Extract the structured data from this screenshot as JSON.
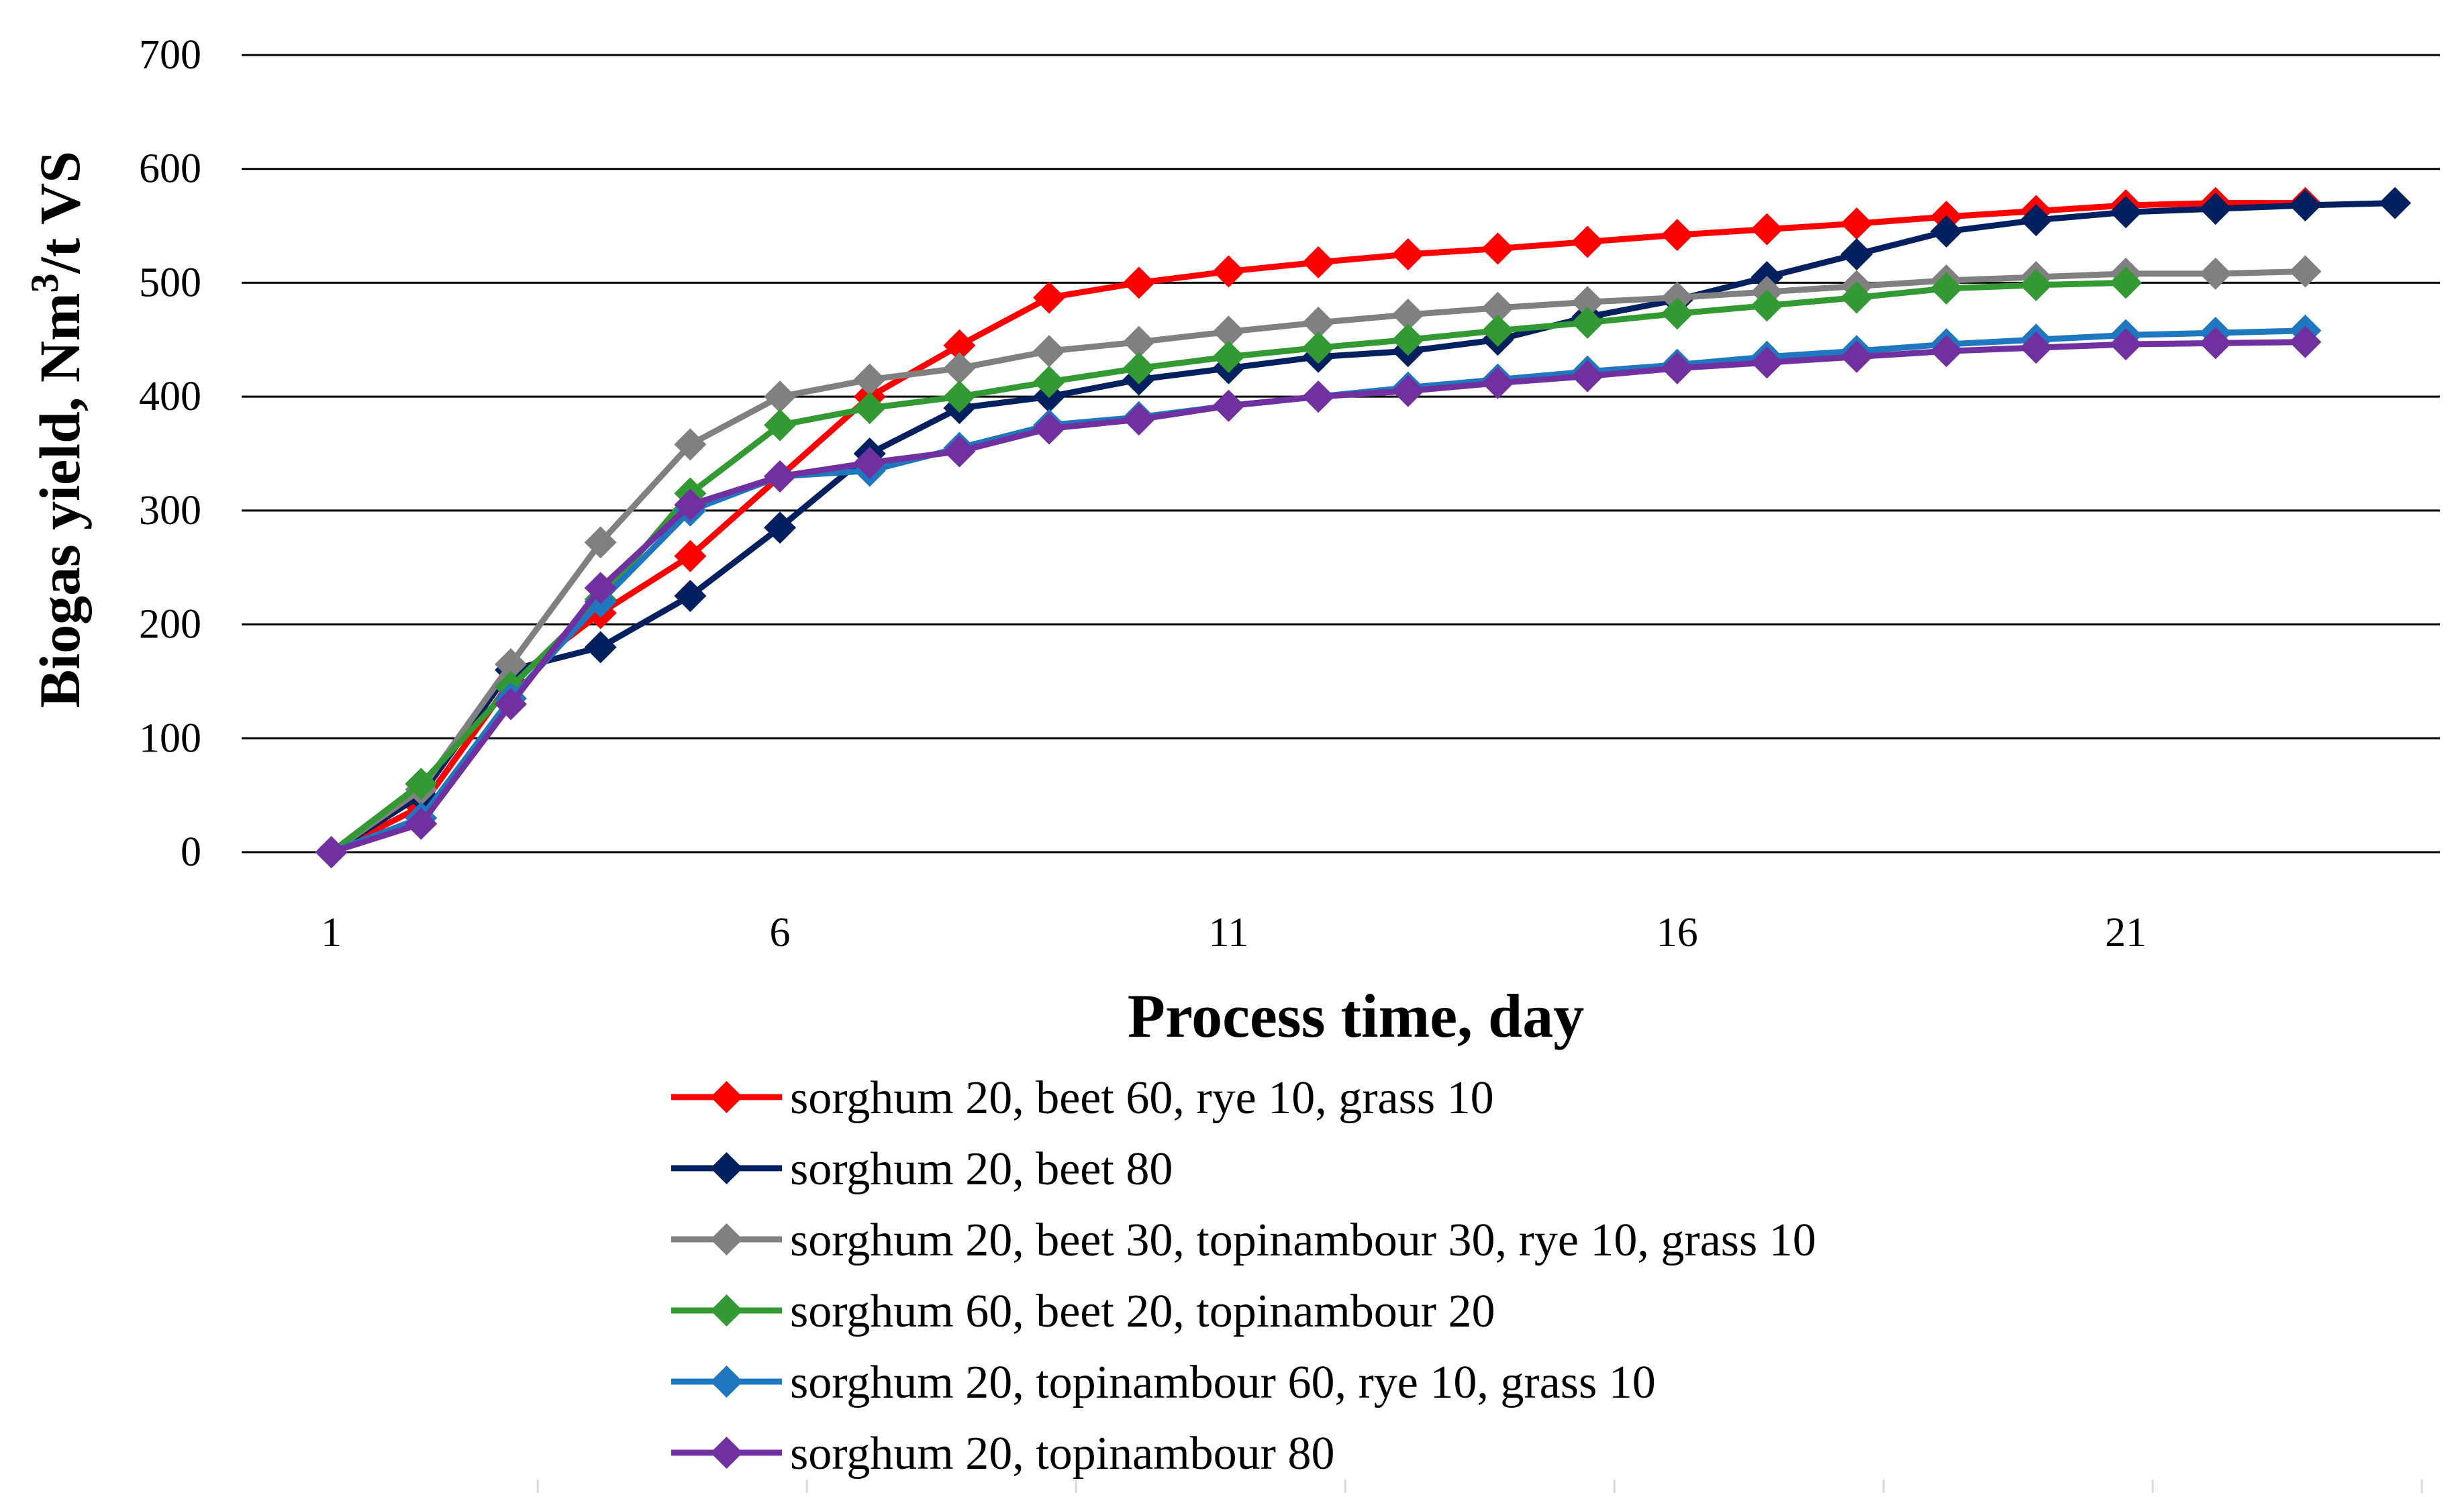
{
  "chart_data": {
    "type": "line",
    "title": "",
    "xlabel": "Process time, day",
    "ylabel": {
      "prefix": "Biogas yield, Nm",
      "sup": "3",
      "suffix": "/t VS"
    },
    "xlim": [
      0,
      24.5
    ],
    "ylim": [
      0,
      700
    ],
    "x_ticks": [
      1,
      6,
      11,
      16,
      21
    ],
    "y_ticks": [
      0,
      100,
      200,
      300,
      400,
      500,
      600,
      700
    ],
    "grid": "horizontal",
    "legend_position": "bottom",
    "series": [
      {
        "name": "sorghum 20, beet 60, rye 10, grass 10",
        "color": "#ff0000",
        "x": [
          1,
          2,
          3,
          4,
          5,
          6,
          7,
          8,
          9,
          10,
          11,
          12,
          13,
          14,
          15,
          16,
          17,
          18,
          19,
          20,
          21,
          22,
          23
        ],
        "values": [
          0,
          40,
          150,
          210,
          260,
          330,
          400,
          445,
          487,
          500,
          510,
          518,
          525,
          530,
          536,
          542,
          547,
          552,
          558,
          563,
          568,
          570,
          570
        ]
      },
      {
        "name": "sorghum 20, beet 80",
        "color": "#002060",
        "x": [
          1,
          2,
          3,
          4,
          5,
          6,
          7,
          8,
          9,
          10,
          11,
          12,
          13,
          14,
          15,
          16,
          17,
          18,
          19,
          20,
          21,
          22,
          23,
          24
        ],
        "values": [
          0,
          50,
          160,
          180,
          225,
          285,
          350,
          390,
          400,
          415,
          425,
          435,
          440,
          450,
          470,
          485,
          505,
          525,
          545,
          555,
          562,
          565,
          568,
          570
        ]
      },
      {
        "name": "sorghum 20, beet 30, topinambour 30, rye 10, grass 10",
        "color": "#808080",
        "x": [
          1,
          2,
          3,
          4,
          5,
          6,
          7,
          8,
          9,
          10,
          11,
          12,
          13,
          14,
          15,
          16,
          17,
          18,
          19,
          20,
          21,
          22,
          23
        ],
        "values": [
          0,
          55,
          165,
          272,
          358,
          400,
          415,
          425,
          440,
          448,
          457,
          465,
          472,
          478,
          483,
          487,
          492,
          497,
          502,
          505,
          508,
          508,
          510
        ]
      },
      {
        "name": "sorghum 60, beet 20, topinambour 20",
        "color": "#339933",
        "x": [
          1,
          2,
          3,
          4,
          5,
          6,
          7,
          8,
          9,
          10,
          11,
          12,
          13,
          14,
          15,
          16,
          17,
          18,
          19,
          20,
          21
        ],
        "values": [
          0,
          60,
          145,
          222,
          315,
          375,
          390,
          400,
          413,
          425,
          435,
          443,
          450,
          458,
          465,
          473,
          480,
          487,
          495,
          498,
          500
        ]
      },
      {
        "name": "sorghum 20, topinambour 60, rye 10, grass 10",
        "color": "#1f77c0",
        "x": [
          1,
          2,
          3,
          4,
          5,
          6,
          7,
          8,
          9,
          10,
          11,
          12,
          13,
          14,
          15,
          16,
          17,
          18,
          19,
          20,
          21,
          22,
          23
        ],
        "values": [
          0,
          30,
          135,
          220,
          300,
          330,
          335,
          355,
          375,
          382,
          392,
          400,
          408,
          415,
          422,
          428,
          435,
          440,
          446,
          450,
          454,
          456,
          458
        ]
      },
      {
        "name": "sorghum 20, topinambour 80",
        "color": "#7030a0",
        "x": [
          1,
          2,
          3,
          4,
          5,
          6,
          7,
          8,
          9,
          10,
          11,
          12,
          13,
          14,
          15,
          16,
          17,
          18,
          19,
          20,
          21,
          22,
          23
        ],
        "values": [
          0,
          25,
          130,
          232,
          305,
          330,
          342,
          352,
          372,
          380,
          392,
          400,
          405,
          412,
          418,
          425,
          430,
          435,
          440,
          443,
          446,
          447,
          448
        ]
      }
    ]
  }
}
